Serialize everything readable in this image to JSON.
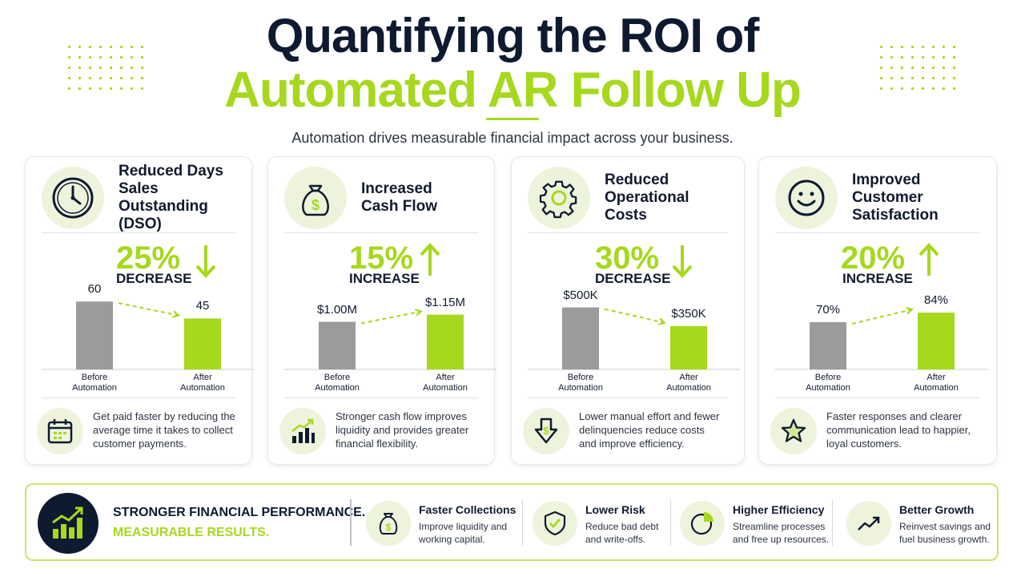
{
  "header": {
    "title_line1": "Quantifying the ROI of",
    "title_line2": "Automated AR Follow Up",
    "subtitle": "Automation drives measurable financial impact across your business."
  },
  "colors": {
    "accent": "#a6d81d",
    "navy": "#0d1a30",
    "before_bar": "#9a9b9d",
    "icon_bg": "#eef3dc"
  },
  "cards": [
    {
      "title_lines": [
        "Reduced Days",
        "Sales Outstanding",
        "(DSO)"
      ],
      "icon": "clock-icon",
      "pct": "25%",
      "direction": "down",
      "word": "DECREASE",
      "foot_icon": "calendar-icon",
      "foot_text": [
        "Get paid faster by reducing the",
        "average time it takes to collect",
        "customer payments."
      ]
    },
    {
      "title_lines": [
        "Increased",
        "Cash Flow"
      ],
      "icon": "money-bag-icon",
      "pct": "15%",
      "direction": "up",
      "word": "INCREASE",
      "foot_icon": "bar-growth-icon",
      "foot_text": [
        "Stronger cash flow improves",
        "liquidity and provides greater",
        "financial flexibility."
      ]
    },
    {
      "title_lines": [
        "Reduced",
        "Operational Costs"
      ],
      "icon": "gear-icon",
      "pct": "30%",
      "direction": "down",
      "word": "DECREASE",
      "foot_icon": "shield-dollar-down-icon",
      "foot_text": [
        "Lower manual effort and fewer",
        "delinquencies reduce costs",
        "and improve efficiency."
      ]
    },
    {
      "title_lines": [
        "Improved",
        "Customer",
        "Satisfaction"
      ],
      "icon": "smiley-icon",
      "pct": "20%",
      "direction": "up",
      "word": "INCREASE",
      "foot_icon": "star-icon",
      "foot_text": [
        "Faster responses and clearer",
        "communication lead to happier,",
        "loyal customers."
      ]
    }
  ],
  "chart_data": [
    {
      "type": "bar",
      "categories": [
        "Before\nAutomation",
        "After\nAutomation"
      ],
      "values": [
        60,
        45
      ],
      "value_labels": [
        "60",
        "45"
      ],
      "ylim": [
        0,
        80
      ]
    },
    {
      "type": "bar",
      "categories": [
        "Before\nAutomation",
        "After\nAutomation"
      ],
      "values": [
        1.0,
        1.15
      ],
      "value_labels": [
        "$1.00M",
        "$1.15M"
      ],
      "ylim": [
        0,
        1.9
      ]
    },
    {
      "type": "bar",
      "categories": [
        "Before\nAutomation",
        "After\nAutomation"
      ],
      "values": [
        500,
        350
      ],
      "value_labels": [
        "$500K",
        "$350K"
      ],
      "ylim": [
        0,
        730
      ]
    },
    {
      "type": "bar",
      "categories": [
        "Before\nAutomation",
        "After\nAutomation"
      ],
      "values": [
        70,
        84
      ],
      "value_labels": [
        "70%",
        "84%"
      ],
      "ylim": [
        0,
        134
      ]
    }
  ],
  "banner": {
    "line1": "STRONGER FINANCIAL PERFORMANCE.",
    "line2": "MEASURABLE RESULTS.",
    "main_icon": "growth-chart-icon",
    "items": [
      {
        "title": "Faster Collections",
        "desc": [
          "Improve liquidity and",
          "working capital."
        ],
        "icon": "money-bag-icon"
      },
      {
        "title": "Lower Risk",
        "desc": [
          "Reduce bad debt",
          "and write-offs."
        ],
        "icon": "shield-check-icon"
      },
      {
        "title": "Higher Efficiency",
        "desc": [
          "Streamline processes",
          "and free up resources."
        ],
        "icon": "pie-chart-icon"
      },
      {
        "title": "Better Growth",
        "desc": [
          "Reinvest savings and",
          "fuel business growth."
        ],
        "icon": "trend-up-icon"
      }
    ]
  }
}
